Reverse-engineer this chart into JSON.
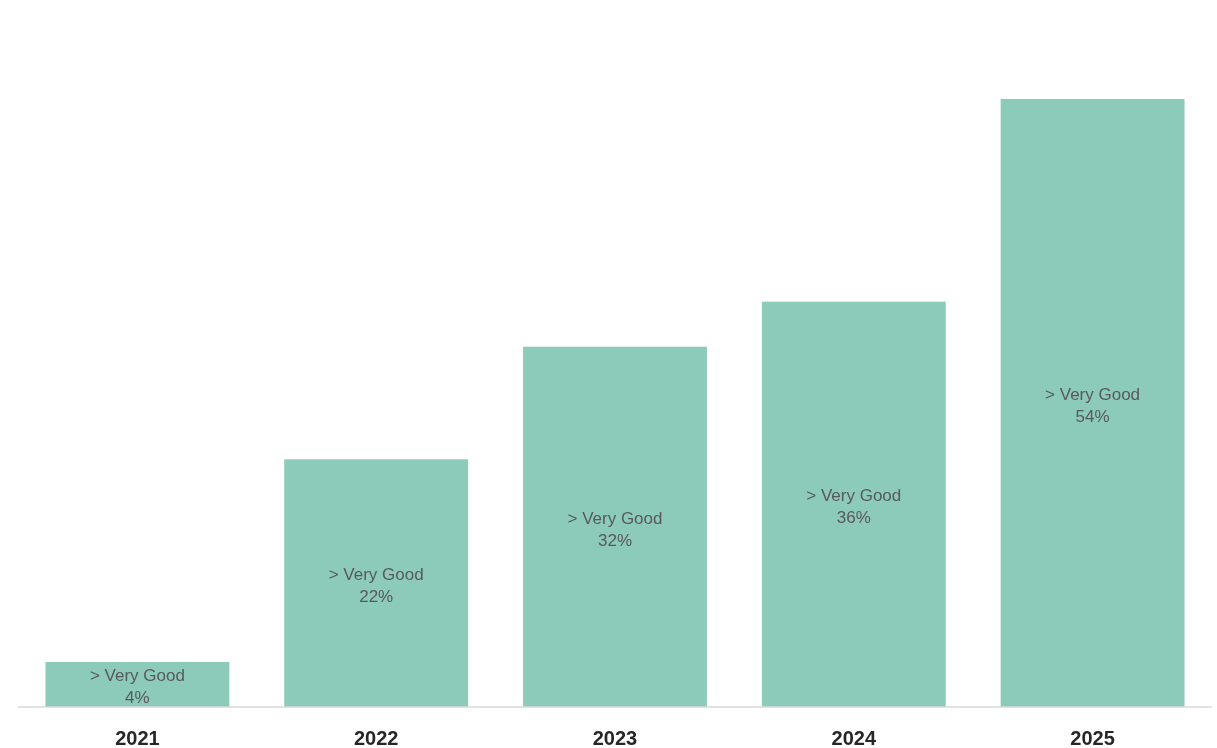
{
  "chart_data": {
    "type": "bar",
    "categories": [
      "2021",
      "2022",
      "2023",
      "2024",
      "2025"
    ],
    "series": [
      {
        "name": "> Very Good",
        "color": "#8ccbba",
        "values": [
          4,
          22,
          32,
          36,
          54
        ],
        "value_labels": [
          "4%",
          "22%",
          "32%",
          "36%",
          "54%"
        ]
      }
    ]
  }
}
